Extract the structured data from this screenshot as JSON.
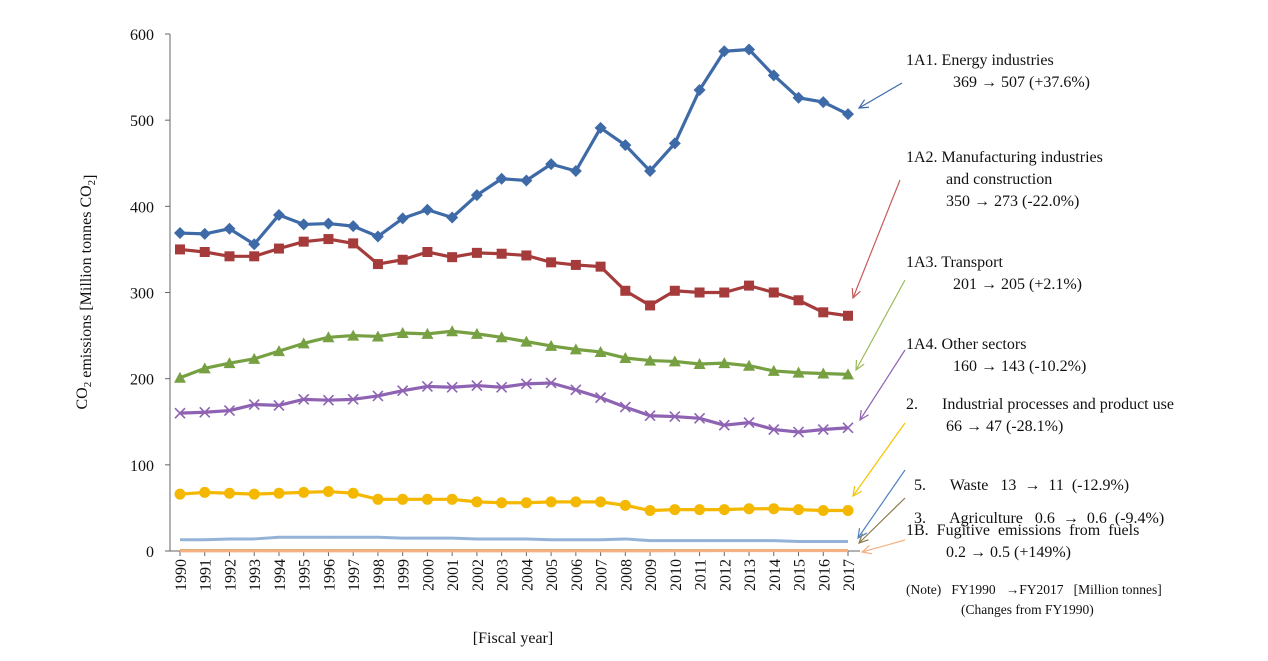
{
  "chart_data": {
    "type": "line",
    "xlabel": "[Fiscal year]",
    "ylabel": "CO2 emissions [Million tonnes CO2]",
    "ylim": [
      0,
      600
    ],
    "yticks": [
      "0",
      "100",
      "200",
      "300",
      "400",
      "500",
      "600"
    ],
    "categories": [
      "1990",
      "1991",
      "1992",
      "1993",
      "1994",
      "1995",
      "1996",
      "1997",
      "1998",
      "1999",
      "2000",
      "2001",
      "2002",
      "2003",
      "2004",
      "2005",
      "2006",
      "2007",
      "2008",
      "2009",
      "2010",
      "2011",
      "2012",
      "2013",
      "2014",
      "2015",
      "2016",
      "2017"
    ],
    "legend_placement": "right",
    "grid": false,
    "series": [
      {
        "color": "#3e6aa8",
        "marker": "diamond",
        "values": [
          369,
          368,
          374,
          356,
          390,
          379,
          380,
          377,
          365,
          386,
          396,
          387,
          413,
          432,
          430,
          449,
          441,
          491,
          471,
          441,
          473,
          535,
          580,
          582,
          552,
          526,
          521,
          507
        ]
      },
      {
        "color": "#a53b3b",
        "marker": "square",
        "values": [
          350,
          347,
          342,
          342,
          351,
          359,
          362,
          357,
          333,
          338,
          347,
          341,
          346,
          345,
          343,
          335,
          332,
          330,
          302,
          285,
          302,
          300,
          300,
          308,
          300,
          291,
          277,
          273
        ]
      },
      {
        "color": "#77a043",
        "marker": "triangle",
        "values": [
          201,
          212,
          218,
          223,
          232,
          241,
          248,
          250,
          249,
          253,
          252,
          255,
          252,
          248,
          243,
          238,
          234,
          231,
          224,
          221,
          220,
          217,
          218,
          215,
          209,
          207,
          206,
          205
        ]
      },
      {
        "color": "#8e63b3",
        "marker": "x",
        "values": [
          160,
          161,
          163,
          170,
          169,
          176,
          175,
          176,
          180,
          186,
          191,
          190,
          192,
          190,
          194,
          195,
          187,
          178,
          167,
          157,
          156,
          154,
          146,
          149,
          141,
          138,
          141,
          143
        ]
      },
      {
        "color": "#f5b800",
        "marker": "circle",
        "values": [
          66,
          68,
          67,
          66,
          67,
          68,
          69,
          67,
          60,
          60,
          60,
          60,
          57,
          56,
          56,
          57,
          57,
          57,
          53,
          47,
          48,
          48,
          48,
          49,
          49,
          48,
          47,
          47
        ]
      },
      {
        "color": "#95b3d7",
        "marker": "none",
        "values": [
          13,
          13,
          14,
          14,
          16,
          16,
          16,
          16,
          16,
          15,
          15,
          15,
          14,
          14,
          14,
          13,
          13,
          13,
          14,
          12,
          12,
          12,
          12,
          12,
          12,
          11,
          11,
          11
        ]
      },
      {
        "color": "#b8a86c",
        "marker": "none",
        "values": [
          0.6,
          0.6,
          0.6,
          0.6,
          0.6,
          0.6,
          0.6,
          0.6,
          0.6,
          0.6,
          0.6,
          0.6,
          0.6,
          0.6,
          0.6,
          0.6,
          0.6,
          0.6,
          0.6,
          0.6,
          0.6,
          0.6,
          0.6,
          0.6,
          0.6,
          0.6,
          0.6,
          0.6
        ]
      },
      {
        "color": "#f4b183",
        "marker": "none",
        "values": [
          0.2,
          0.2,
          0.2,
          0.2,
          0.2,
          0.2,
          0.2,
          0.2,
          0.2,
          0.2,
          0.2,
          0.2,
          0.2,
          0.2,
          0.2,
          0.2,
          0.2,
          0.2,
          0.2,
          0.2,
          0.3,
          0.3,
          0.4,
          0.4,
          0.4,
          0.5,
          0.5,
          0.5
        ]
      }
    ]
  },
  "annotations": [
    {
      "line1": "1A1. Energy  industries",
      "line2": "369  →  507  (+37.6%)",
      "color": "#3e6aa8"
    },
    {
      "line1": "1A2. Manufacturing  industries",
      "line1b": "and construction",
      "line2": "350  →  273  (-22.0%)",
      "color": "#c65a5a"
    },
    {
      "line1": "1A3. Transport",
      "line2": "201  →  205  (+2.1%)",
      "color": "#9bbb59"
    },
    {
      "line1": "1A4. Other sectors",
      "line2": "160  →  143  (-10.2%)",
      "color": "#8e63b3"
    },
    {
      "line1": "2.      Industrial processes and product use",
      "line2": "66  →  47  (-28.1%)",
      "color": "#f5c400"
    },
    {
      "line1": "5.      Waste   13  →  11  (-12.9%)",
      "color": "#4f81bd"
    },
    {
      "line1": "3.      Agriculture   0.6  →  0.6  (-9.4%)",
      "color": "#8a7a4a"
    },
    {
      "line1": "1B.  Fugitive  emissions  from  fuels",
      "line2": "0.2  →  0.5  (+149%)",
      "color": "#f4b183"
    }
  ],
  "note": {
    "line1": "(Note)   FY1990   →FY2017   [Million tonnes]",
    "line2": "(Changes from FY1990)"
  }
}
